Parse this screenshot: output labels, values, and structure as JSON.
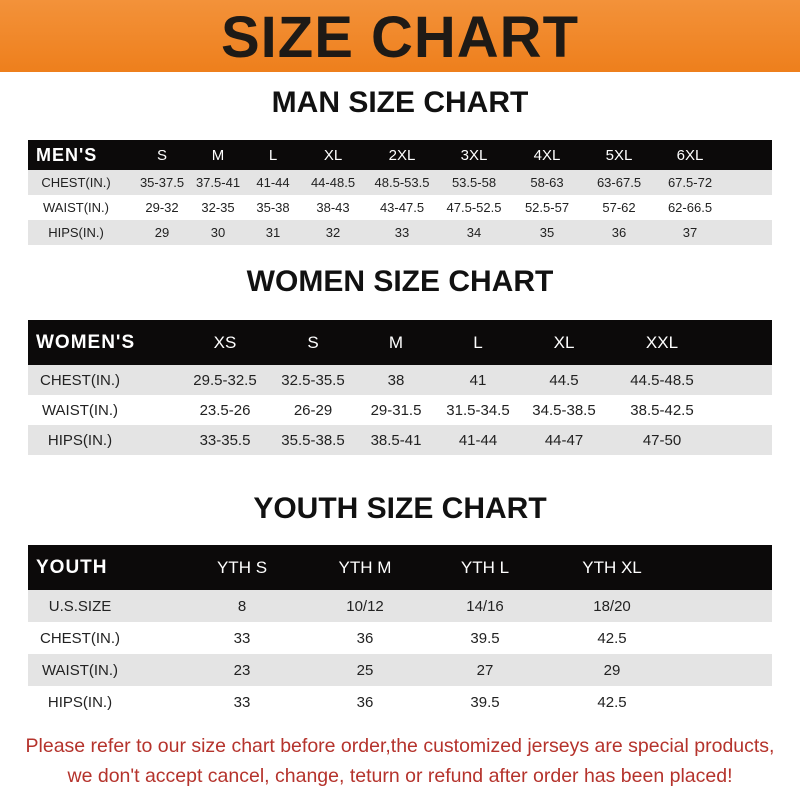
{
  "title": "SIZE CHART",
  "men": {
    "title": "MAN SIZE CHART",
    "header": [
      "MEN'S",
      "S",
      "M",
      "L",
      "XL",
      "2XL",
      "3XL",
      "4XL",
      "5XL",
      "6XL"
    ],
    "rows": [
      [
        "CHEST(IN.)",
        "35-37.5",
        "37.5-41",
        "41-44",
        "44-48.5",
        "48.5-53.5",
        "53.5-58",
        "58-63",
        "63-67.5",
        "67.5-72"
      ],
      [
        "WAIST(IN.)",
        "29-32",
        "32-35",
        "35-38",
        "38-43",
        "43-47.5",
        "47.5-52.5",
        "52.5-57",
        "57-62",
        "62-66.5"
      ],
      [
        "HIPS(IN.)",
        "29",
        "30",
        "31",
        "32",
        "33",
        "34",
        "35",
        "36",
        "37"
      ]
    ]
  },
  "women": {
    "title": "WOMEN SIZE CHART",
    "header": [
      "WOMEN'S",
      "XS",
      "S",
      "M",
      "L",
      "XL",
      "XXL"
    ],
    "rows": [
      [
        "CHEST(IN.)",
        "29.5-32.5",
        "32.5-35.5",
        "38",
        "41",
        "44.5",
        "44.5-48.5"
      ],
      [
        "WAIST(IN.)",
        "23.5-26",
        "26-29",
        "29-31.5",
        "31.5-34.5",
        "34.5-38.5",
        "38.5-42.5"
      ],
      [
        "HIPS(IN.)",
        "33-35.5",
        "35.5-38.5",
        "38.5-41",
        "41-44",
        "44-47",
        "47-50"
      ]
    ]
  },
  "youth": {
    "title": "YOUTH SIZE CHART",
    "header": [
      "YOUTH",
      "YTH S",
      "YTH M",
      "YTH L",
      "YTH XL"
    ],
    "rows": [
      [
        "U.S.SIZE",
        "8",
        "10/12",
        "14/16",
        "18/20"
      ],
      [
        "CHEST(IN.)",
        "33",
        "36",
        "39.5",
        "42.5"
      ],
      [
        "WAIST(IN.)",
        "23",
        "25",
        "27",
        "29"
      ],
      [
        "HIPS(IN.)",
        "33",
        "36",
        "39.5",
        "42.5"
      ]
    ]
  },
  "notice": [
    "Please refer to our size chart before order,the customized jerseys are special products,",
    "we don't accept cancel, change, teturn or refund after order has been placed!"
  ]
}
